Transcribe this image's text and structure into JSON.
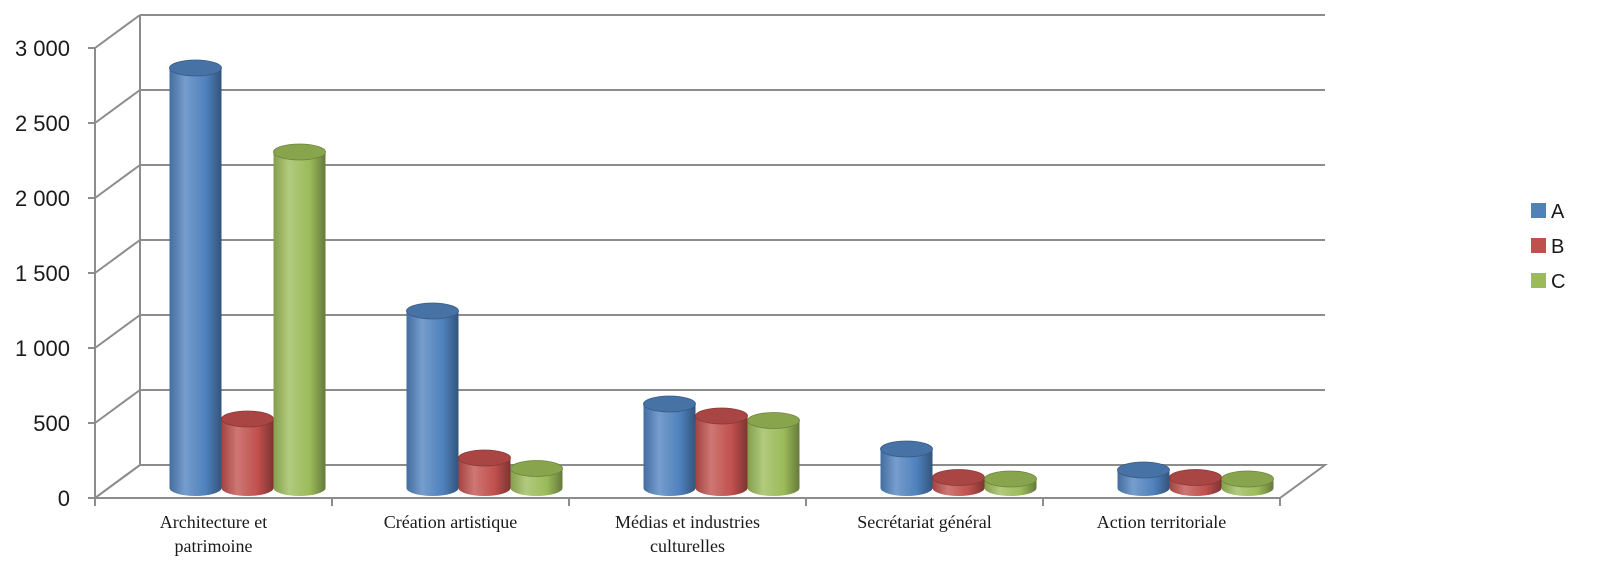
{
  "chart_data": {
    "type": "bar",
    "title": "",
    "xlabel": "",
    "ylabel": "",
    "ylim": [
      0,
      3000
    ],
    "y_ticks": [
      0,
      500,
      1000,
      1500,
      2000,
      2500,
      3000
    ],
    "y_tick_labels": [
      "0",
      "500",
      "1 000",
      "1 500",
      "2 000",
      "2 500",
      "3 000"
    ],
    "grid": true,
    "legend_position": "right",
    "categories": [
      [
        "Architecture et",
        "patrimoine"
      ],
      [
        "Création artistique"
      ],
      [
        "Médias et industries",
        "culturelles"
      ],
      [
        "Secrétariat général"
      ],
      [
        "Action territoriale"
      ]
    ],
    "series": [
      {
        "name": "A",
        "color": "#4f81bd",
        "values": [
          2800,
          1180,
          560,
          260,
          120
        ]
      },
      {
        "name": "B",
        "color": "#c0504d",
        "values": [
          460,
          200,
          480,
          70,
          70
        ]
      },
      {
        "name": "C",
        "color": "#9bbb59",
        "values": [
          2240,
          130,
          450,
          60,
          60
        ]
      }
    ]
  }
}
